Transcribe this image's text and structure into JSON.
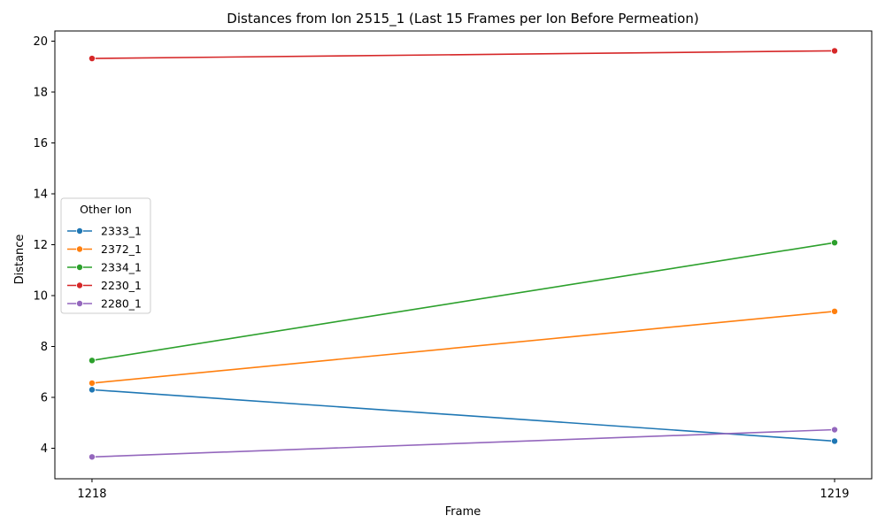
{
  "chart_data": {
    "type": "line",
    "title": "Distances from Ion 2515_1 (Last 15 Frames per Ion Before Permeation)",
    "xlabel": "Frame",
    "ylabel": "Distance",
    "x": [
      1218,
      1219
    ],
    "xticks": [
      "1218",
      "1219"
    ],
    "ylim": [
      2.8,
      20.4
    ],
    "yticks": [
      4,
      6,
      8,
      10,
      12,
      14,
      16,
      18,
      20
    ],
    "grid": false,
    "legend": {
      "title": "Other Ion",
      "placement": "center-left"
    },
    "marker": "circle",
    "series": [
      {
        "name": "2333_1",
        "color": "#1f77b4",
        "values": [
          6.3,
          4.28
        ]
      },
      {
        "name": "2372_1",
        "color": "#ff7f0e",
        "values": [
          6.56,
          9.38
        ]
      },
      {
        "name": "2334_1",
        "color": "#2ca02c",
        "values": [
          7.45,
          12.08
        ]
      },
      {
        "name": "2230_1",
        "color": "#d62728",
        "values": [
          19.32,
          19.62
        ]
      },
      {
        "name": "2280_1",
        "color": "#9467bd",
        "values": [
          3.66,
          4.73
        ]
      }
    ]
  }
}
